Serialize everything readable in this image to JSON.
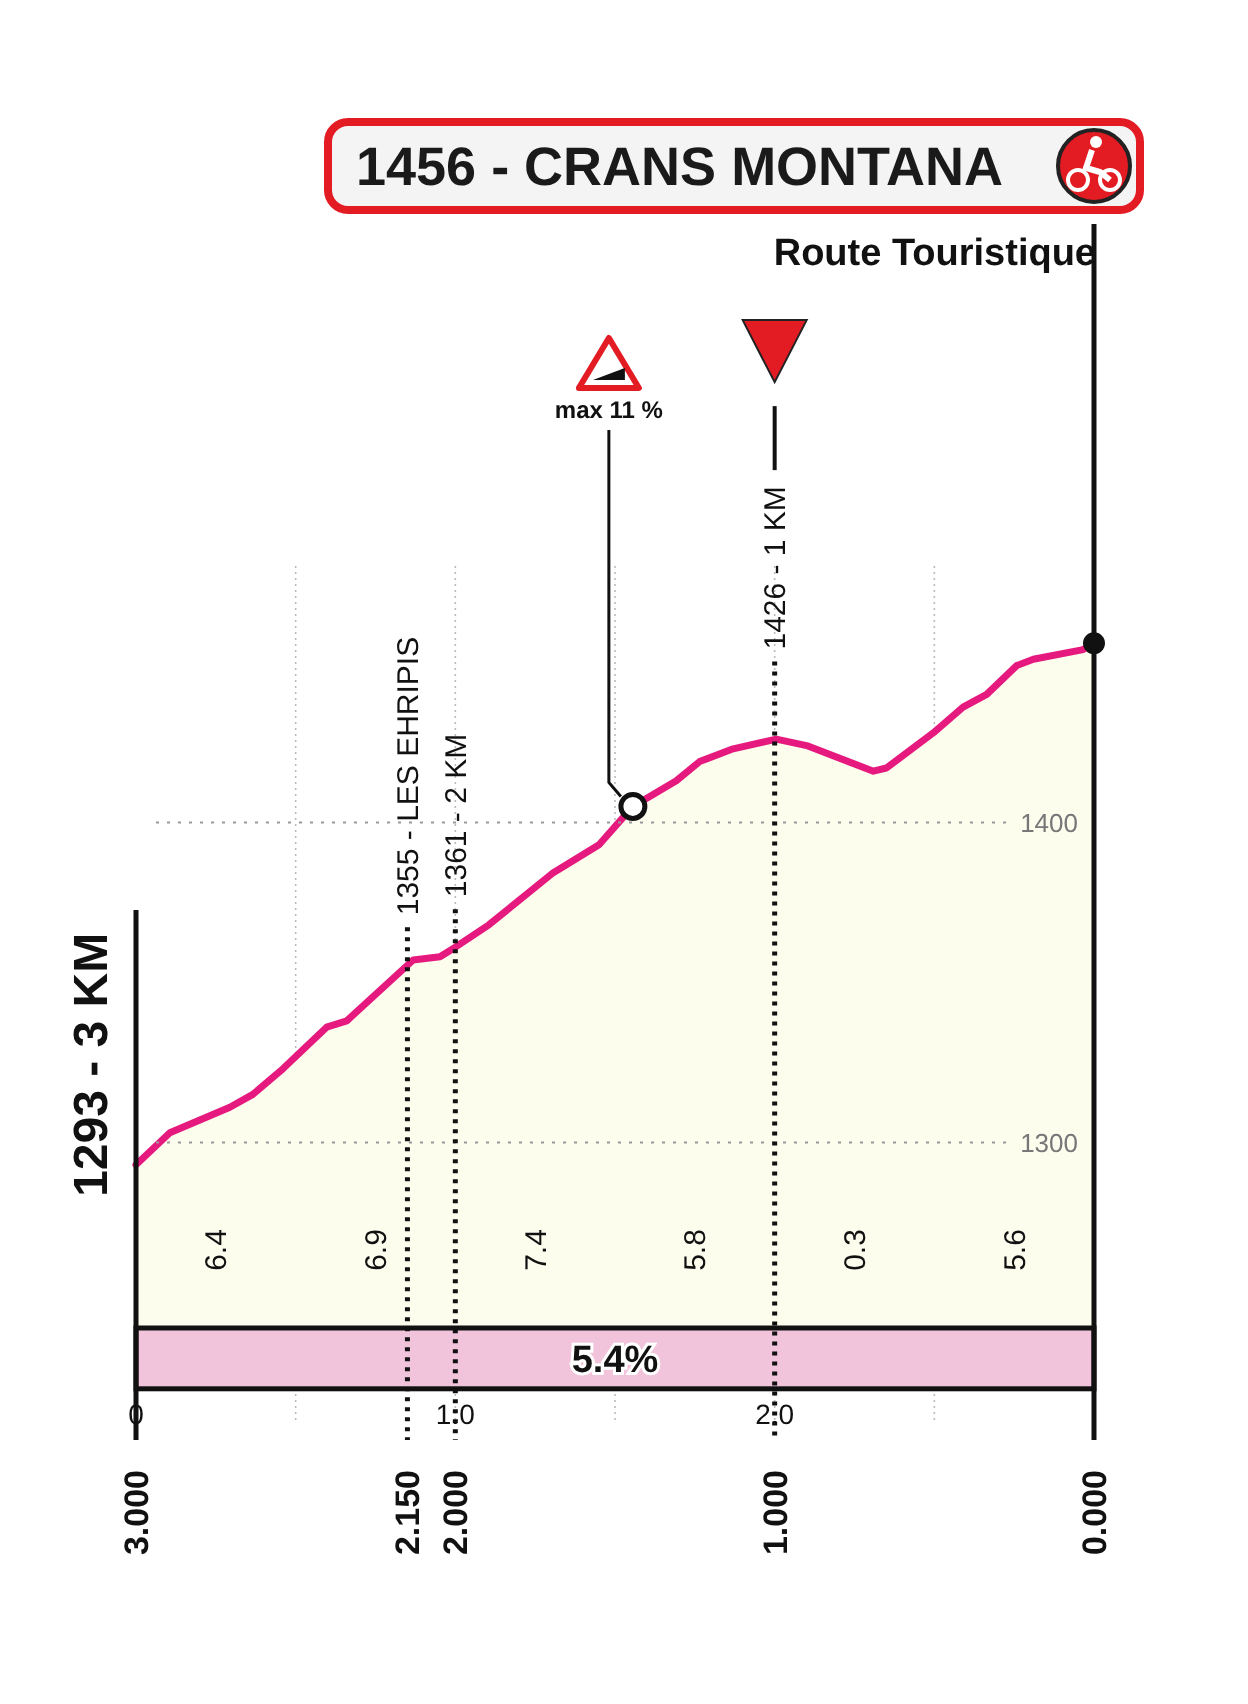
{
  "chart_data": {
    "type": "area",
    "title": "1456 - CRANS MONTANA",
    "subtitle": "Route Touristique",
    "x": [
      0,
      0.106,
      0.294,
      0.366,
      0.46,
      0.597,
      0.66,
      0.868,
      0.952,
      1.0,
      1.105,
      1.303,
      1.45,
      1.556,
      1.692,
      1.765,
      1.87,
      2.005,
      2.1,
      2.309,
      2.35,
      2.497,
      2.59,
      2.664,
      2.758,
      2.81,
      2.966,
      3
    ],
    "series": [
      {
        "color": "#e5197e",
        "values": [
          1293,
          1303,
          1311,
          1315,
          1323,
          1336,
          1338,
          1357,
          1358,
          1361,
          1368,
          1384,
          1393,
          1405,
          1413,
          1419,
          1423,
          1426,
          1424,
          1416,
          1417,
          1428,
          1436,
          1440,
          1449,
          1451,
          1454,
          1456
        ]
      }
    ],
    "xlim": [
      0,
      3
    ],
    "xticks": [
      0,
      {
        "value": 0.5,
        "label": null
      },
      {
        "value": 1,
        "label": "1.0"
      },
      {
        "value": 1.5,
        "label": null
      },
      {
        "value": 2,
        "label": "2.0"
      },
      {
        "value": 2.5,
        "label": null
      }
    ],
    "x2lim": [
      3,
      0
    ],
    "x2ticks": [
      {
        "value": 3,
        "label": "3.000"
      },
      {
        "value": 2.15,
        "label": "2.150"
      },
      {
        "value": 2,
        "label": "2.000"
      },
      {
        "value": 1,
        "label": "1.000"
      },
      {
        "value": 0,
        "label": "0.000"
      }
    ],
    "ylim": [
      1207,
      1587
    ],
    "yticks": [
      1300,
      1400
    ],
    "grid": true,
    "ref_lines": [
      {
        "axis": "x",
        "value": 0.85,
        "label": "1355 - LES EHRIPIS",
        "line_style": "dotted"
      },
      {
        "axis": "x",
        "value": 1,
        "label": "1361 - 2 KM",
        "line_style": "dotted"
      },
      {
        "axis": "x",
        "value": 2,
        "label": "1426 - 1 KM",
        "line_style": "dotted"
      }
    ],
    "annotations": [
      {
        "text": "1293 - 3 KM",
        "x": 0,
        "y": 1293
      },
      {
        "text": "max 11 %",
        "x": 1.556,
        "y": 1405
      },
      "6.4",
      "6.9",
      "7.4",
      "5.8",
      "0.3",
      "5.6"
    ],
    "bands": [
      {
        "axis": "y",
        "from": 1223,
        "to": 1242,
        "label": "5.4%",
        "color": "#f2c4dc"
      }
    ]
  }
}
